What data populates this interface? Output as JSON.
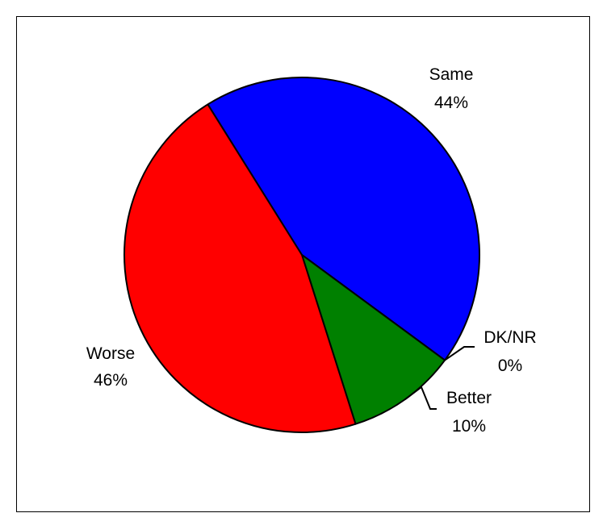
{
  "chart_data": {
    "type": "pie",
    "title": "",
    "slices": [
      {
        "label": "Same",
        "value": 44,
        "value_text": "44%",
        "color": "#0000FF"
      },
      {
        "label": "DK/NR",
        "value": 0,
        "value_text": "0%",
        "color": "#FFFF00"
      },
      {
        "label": "Better",
        "value": 10,
        "value_text": "10%",
        "color": "#008000"
      },
      {
        "label": "Worse",
        "value": 46,
        "value_text": "46%",
        "color": "#FF0000"
      }
    ],
    "legend": "none",
    "border_color": "#000000"
  }
}
